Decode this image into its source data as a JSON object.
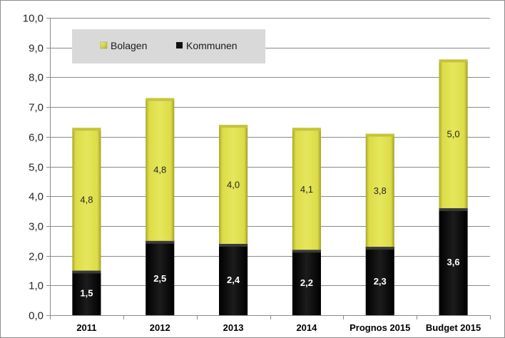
{
  "chart_data": {
    "type": "bar",
    "stacked": true,
    "categories": [
      "2011",
      "2012",
      "2013",
      "2014",
      "Prognos 2015",
      "Budget 2015"
    ],
    "series": [
      {
        "name": "Kommunen",
        "values": [
          1.5,
          2.5,
          2.4,
          2.2,
          2.3,
          3.6
        ],
        "labels": [
          "1,5",
          "2,5",
          "2,4",
          "2,2",
          "2,3",
          "3,6"
        ],
        "color": "#111111"
      },
      {
        "name": "Bolagen",
        "values": [
          4.8,
          4.8,
          4.0,
          4.1,
          3.8,
          5.0
        ],
        "labels": [
          "4,8",
          "4,8",
          "4,0",
          "4,1",
          "3,8",
          "5,0"
        ],
        "color": "#dede4a"
      }
    ],
    "ylim": [
      0,
      10
    ],
    "yticks": [
      "0,0",
      "1,0",
      "2,0",
      "3,0",
      "4,0",
      "5,0",
      "6,0",
      "7,0",
      "8,0",
      "9,0",
      "10,0"
    ],
    "title": "",
    "xlabel": "",
    "ylabel": "",
    "grid": true,
    "legend": {
      "placement": "top-left",
      "entries": [
        "Bolagen",
        "Kommunen"
      ]
    }
  }
}
